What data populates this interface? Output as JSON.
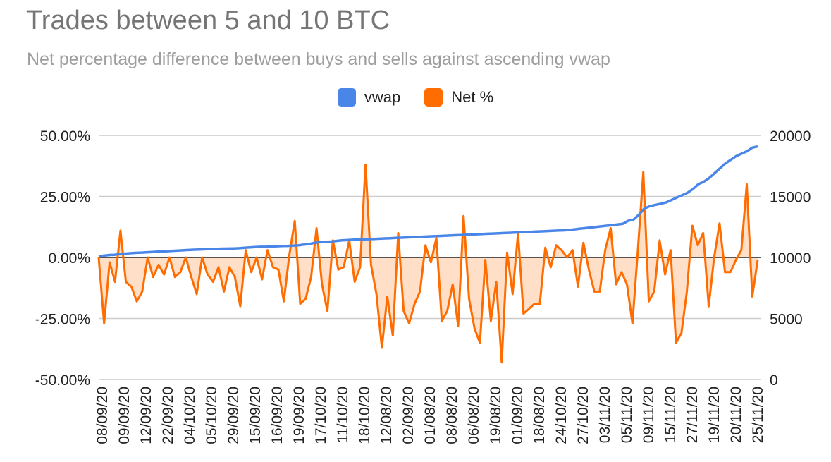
{
  "chart_data": {
    "type": "line",
    "title": "Trades between 5 and 10 BTC",
    "subtitle": "Net percentage difference between buys and sells against ascending vwap",
    "legend_position": "top",
    "grid": true,
    "y_left": {
      "ylim": [
        -50,
        50
      ],
      "ticks": [
        "50.00%",
        "25.00%",
        "0.00%",
        "-25.00%",
        "-50.00%"
      ]
    },
    "y_right": {
      "ylim": [
        0,
        20000
      ],
      "ticks": [
        "20000",
        "15000",
        "10000",
        "5000",
        "0"
      ]
    },
    "x_tick_labels": [
      "08/09/20",
      "09/09/20",
      "12/09/20",
      "22/09/20",
      "04/10/20",
      "05/10/20",
      "29/09/20",
      "15/09/20",
      "16/09/20",
      "19/09/20",
      "17/10/20",
      "11/10/20",
      "18/10/20",
      "12/08/20",
      "02/09/20",
      "01/08/20",
      "08/08/20",
      "06/08/20",
      "19/08/20",
      "01/09/20",
      "18/08/20",
      "24/10/20",
      "27/10/20",
      "03/11/20",
      "05/11/20",
      "09/11/20",
      "15/11/20",
      "27/11/20",
      "19/11/20",
      "20/11/20",
      "25/11/20"
    ],
    "series": [
      {
        "name": "vwap",
        "axis": "right",
        "color": "#4a86e8",
        "values": [
          10100,
          10150,
          10200,
          10220,
          10300,
          10320,
          10350,
          10380,
          10400,
          10430,
          10450,
          10480,
          10500,
          10520,
          10550,
          10570,
          10600,
          10620,
          10640,
          10660,
          10680,
          10700,
          10710,
          10720,
          10730,
          10740,
          10760,
          10800,
          10820,
          10850,
          10870,
          10880,
          10900,
          10920,
          10940,
          10950,
          10970,
          11000,
          11050,
          11100,
          11200,
          11250,
          11270,
          11300,
          11350,
          11400,
          11420,
          11450,
          11470,
          11490,
          11500,
          11520,
          11540,
          11560,
          11580,
          11600,
          11620,
          11640,
          11660,
          11680,
          11700,
          11720,
          11740,
          11760,
          11780,
          11800,
          11820,
          11840,
          11860,
          11880,
          11900,
          11920,
          11940,
          11960,
          11980,
          12000,
          12020,
          12040,
          12060,
          12080,
          12100,
          12120,
          12140,
          12160,
          12180,
          12200,
          12220,
          12250,
          12300,
          12350,
          12400,
          12450,
          12500,
          12550,
          12600,
          12650,
          12700,
          12750,
          13000,
          13100,
          13500,
          14000,
          14200,
          14300,
          14400,
          14500,
          14700,
          14900,
          15100,
          15300,
          15600,
          16000,
          16200,
          16500,
          16900,
          17300,
          17700,
          18000,
          18300,
          18500,
          18700,
          19000,
          19100
        ],
        "note": ""
      },
      {
        "name": "Net %",
        "axis": "left",
        "color": "#ff6d01",
        "values": [
          0,
          -27,
          -2,
          -10,
          11,
          -10,
          -12,
          -18,
          -14,
          0,
          -8,
          -3,
          -7,
          0,
          -8,
          -6,
          0,
          -8,
          -15,
          0,
          -7,
          -10,
          -4,
          -14,
          -4,
          -8,
          -20,
          3,
          -6,
          0,
          -9,
          3,
          -4,
          -5,
          -18,
          1,
          15,
          -19,
          -17,
          -8,
          12,
          -11,
          -22,
          7,
          -5,
          -4,
          7,
          -10,
          -4,
          38,
          -3,
          -15,
          -37,
          -16,
          -32,
          10,
          -22,
          -27,
          -19,
          -14,
          5,
          -2,
          8,
          -26,
          -22,
          -11,
          -28,
          17,
          -17,
          -29,
          -35,
          -1,
          -26,
          -10,
          -43,
          2,
          -15,
          10,
          -23,
          -21,
          -19,
          -19,
          4,
          -4,
          5,
          3,
          0,
          3,
          -12,
          6,
          -5,
          -14,
          -14,
          3,
          12,
          -11,
          -6,
          -11,
          -27,
          3,
          35,
          -18,
          -14,
          7,
          -7,
          3,
          -35,
          -31,
          -14,
          13,
          5,
          10,
          -20,
          0,
          14,
          -6,
          -6,
          -1,
          3,
          30,
          -16,
          -1
        ]
      }
    ]
  }
}
